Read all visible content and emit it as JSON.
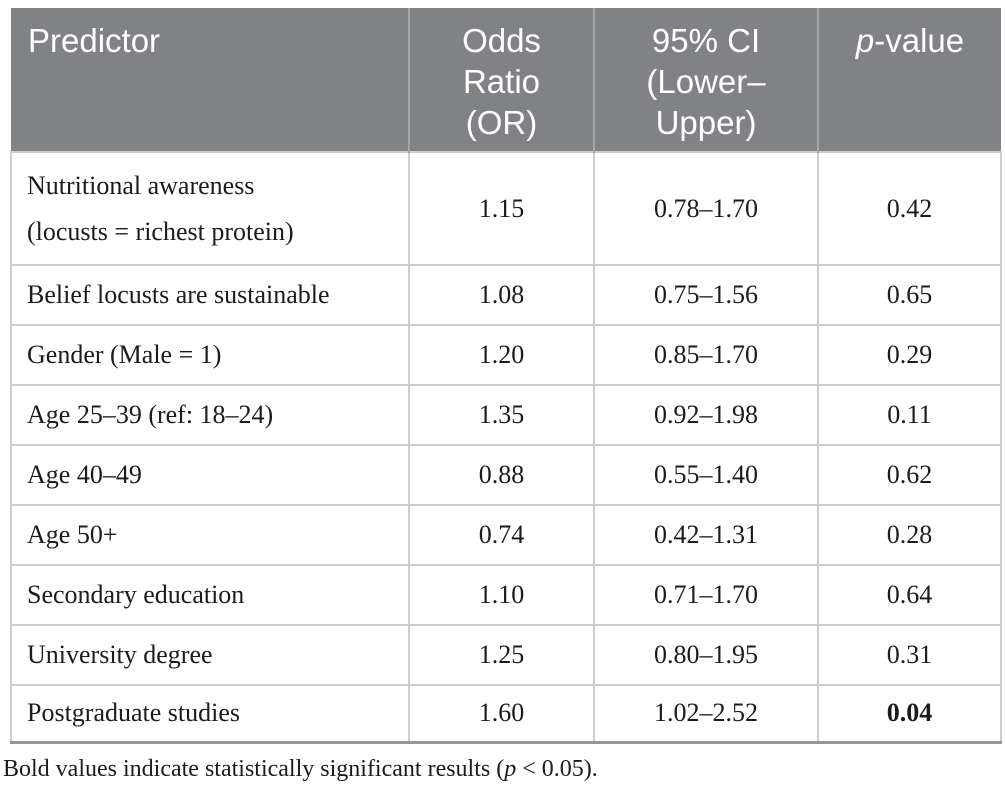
{
  "colors": {
    "header_bg": "#808285",
    "header_text": "#ffffff",
    "header_divider": "#a3a5a8",
    "grid_line": "#cbcdd0",
    "bottom_line": "#949698",
    "body_text": "#1b1b1b",
    "page_bg": "#ffffff"
  },
  "table": {
    "header": {
      "predictor": "Predictor",
      "odds_ratio_lines": [
        "Odds",
        "Ratio",
        "(OR)"
      ],
      "ci_lines": [
        "95% CI",
        "(Lower–",
        "Upper)"
      ],
      "p_italic": "p",
      "p_rest": "-value"
    },
    "rows": [
      {
        "predictor_line1": "Nutritional awareness",
        "predictor_line2": "(locusts = richest protein)",
        "odds_ratio": "1.15",
        "ci": "0.78–1.70",
        "p_value": "0.42",
        "p_bold": false
      },
      {
        "predictor": "Belief locusts are sustainable",
        "odds_ratio": "1.08",
        "ci": "0.75–1.56",
        "p_value": "0.65",
        "p_bold": false
      },
      {
        "predictor": "Gender (Male = 1)",
        "odds_ratio": "1.20",
        "ci": "0.85–1.70",
        "p_value": "0.29",
        "p_bold": false
      },
      {
        "predictor": "Age 25–39 (ref: 18–24)",
        "odds_ratio": "1.35",
        "ci": "0.92–1.98",
        "p_value": "0.11",
        "p_bold": false
      },
      {
        "predictor": "Age 40–49",
        "odds_ratio": "0.88",
        "ci": "0.55–1.40",
        "p_value": "0.62",
        "p_bold": false
      },
      {
        "predictor": "Age 50+",
        "odds_ratio": "0.74",
        "ci": "0.42–1.31",
        "p_value": "0.28",
        "p_bold": false
      },
      {
        "predictor": "Secondary education",
        "odds_ratio": "1.10",
        "ci": "0.71–1.70",
        "p_value": "0.64",
        "p_bold": false
      },
      {
        "predictor": "University degree",
        "odds_ratio": "1.25",
        "ci": "0.80–1.95",
        "p_value": "0.31",
        "p_bold": false
      },
      {
        "predictor": "Postgraduate studies",
        "odds_ratio": "1.60",
        "ci": "1.02–2.52",
        "p_value": "0.04",
        "p_bold": true
      }
    ]
  },
  "footnote": {
    "prefix": "Bold values indicate statistically significant results (",
    "italic": "p",
    "suffix": " < 0.05)."
  }
}
